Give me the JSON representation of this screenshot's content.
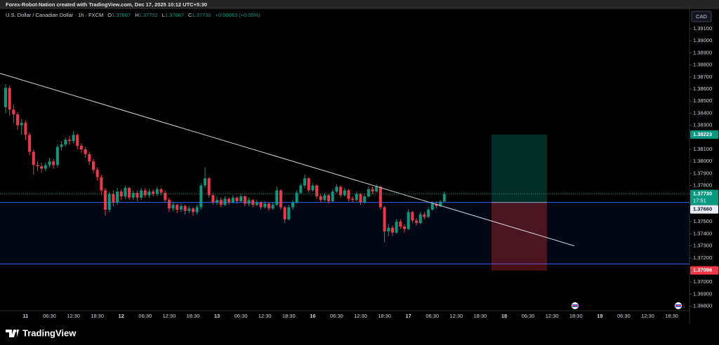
{
  "header": "Forex-Robot-Nation created with TradingView.com, Dec 17, 2025 10:12 UTC+5:30",
  "branding": "TradingView",
  "chart_data": {
    "type": "candlestick",
    "symbol": "U.S. Dollar / Canadian Dollar · 1h · FXCM",
    "legend": [
      {
        "label": "O",
        "value": "1.37667"
      },
      {
        "label": "H",
        "value": "1.37752"
      },
      {
        "label": "L",
        "value": "1.37667"
      },
      {
        "label": "C",
        "value": "1.37730"
      }
    ],
    "change": "+0.00063 (+0.05%)",
    "currency": "CAD",
    "up_color": "#089981",
    "down_color": "#f23645",
    "categories": [
      null,
      null,
      null,
      null,
      null,
      "11",
      null,
      null,
      null,
      null,
      null,
      "06:30",
      null,
      null,
      null,
      null,
      null,
      "12:30",
      null,
      null,
      null,
      null,
      null,
      "18:30",
      null,
      null,
      null,
      null,
      null,
      "12",
      null,
      null,
      null,
      null,
      null,
      "06:30",
      null,
      null,
      null,
      null,
      null,
      "12:30",
      null,
      null,
      null,
      null,
      null,
      "18:30",
      null,
      null,
      null,
      null,
      null,
      "13",
      null,
      null,
      null,
      null,
      null,
      "06:30",
      null,
      null,
      null,
      null,
      null,
      "12:30",
      null,
      null,
      null,
      null,
      null,
      "18:30",
      null,
      null,
      null,
      null,
      null,
      "16",
      null,
      null,
      null,
      null,
      null,
      "06:30",
      null,
      null,
      null,
      null,
      null,
      "12:30",
      null,
      null,
      null,
      null,
      null,
      "18:30",
      null,
      null,
      null,
      null,
      null,
      "17",
      null,
      null,
      null,
      null,
      null,
      "06:30",
      null,
      null,
      null,
      null,
      null,
      "12:30",
      null,
      null,
      null,
      null,
      null,
      "18:30",
      null,
      null,
      null,
      null,
      null,
      "18",
      null,
      null,
      null,
      null,
      null,
      "06:30",
      null,
      null,
      null,
      null,
      null,
      "12:30",
      null,
      null,
      null,
      null,
      null,
      "18:30",
      null,
      null,
      null,
      null,
      null,
      "19",
      null,
      null,
      null,
      null,
      null,
      "06:30",
      null,
      null,
      null,
      null,
      null,
      "12:30",
      null,
      null,
      null,
      null,
      null,
      "18:30",
      null,
      null,
      null,
      null
    ],
    "open": [
      1.3845,
      1.3861,
      1.3843,
      1.3839,
      1.383,
      1.3832,
      1.3822,
      1.3808,
      1.3797,
      1.3796,
      1.3794,
      1.3797,
      1.38,
      1.3797,
      1.3812,
      1.3814,
      1.3818,
      1.3817,
      1.3822,
      1.3813,
      1.381,
      1.3806,
      1.38,
      1.3793,
      1.3787,
      1.3776,
      1.376,
      1.3773,
      1.3766,
      1.3775,
      1.3771,
      1.3778,
      1.377,
      1.3774,
      1.377,
      1.3776,
      1.3772,
      1.3775,
      1.3773,
      1.3777,
      1.3774,
      1.3768,
      1.3761,
      1.3764,
      1.376,
      1.3763,
      1.3759,
      1.3761,
      1.3758,
      1.3762,
      1.378,
      1.3786,
      1.3772,
      1.3766,
      1.3768,
      1.3764,
      1.3769,
      1.3766,
      1.377,
      1.3767,
      1.3771,
      1.3765,
      1.3768,
      1.3764,
      1.3766,
      1.3762,
      1.3765,
      1.3761,
      1.3764,
      1.3776,
      1.3762,
      1.3752,
      1.3762,
      1.3766,
      1.3774,
      1.378,
      1.3786,
      1.3776,
      1.378,
      1.3771,
      1.3768,
      1.3772,
      1.3767,
      1.3775,
      1.3779,
      1.3772,
      1.3776,
      1.3769,
      1.3768,
      1.3773,
      1.3766,
      1.3771,
      1.3777,
      1.3775,
      1.3779,
      1.3762,
      1.3742,
      1.3745,
      1.3741,
      1.375,
      1.3746,
      1.3744,
      1.3758,
      1.3751,
      1.3749,
      1.3756,
      1.3754,
      1.376,
      1.3765,
      1.3763,
      1.37667,
      null,
      null,
      null,
      null,
      null,
      null,
      null,
      null,
      null,
      null,
      null,
      null,
      null,
      null,
      null,
      null,
      null,
      null,
      null,
      null,
      null,
      null,
      null,
      null,
      null,
      null,
      null,
      null,
      null,
      null,
      null,
      null,
      null,
      null,
      null,
      null,
      null,
      null,
      null,
      null,
      null,
      null,
      null,
      null,
      null,
      null,
      null,
      null,
      null,
      null,
      null,
      null,
      null,
      null,
      null,
      null,
      null,
      null,
      null,
      null,
      null
    ],
    "high": [
      1.3864,
      1.3863,
      1.3847,
      1.3841,
      1.3835,
      1.3834,
      1.3824,
      1.381,
      1.38,
      1.3799,
      1.3799,
      1.3803,
      1.3802,
      1.3814,
      1.3817,
      1.382,
      1.3821,
      1.3825,
      1.3823,
      1.3815,
      1.3812,
      1.3808,
      1.3802,
      1.3795,
      1.3789,
      1.3778,
      1.3775,
      1.3776,
      1.3778,
      1.3777,
      1.378,
      1.3779,
      1.3776,
      1.3776,
      1.3778,
      1.3778,
      1.3777,
      1.3777,
      1.3779,
      1.3778,
      1.3776,
      1.377,
      1.3766,
      1.3765,
      1.3765,
      1.3764,
      1.3763,
      1.3762,
      1.3764,
      1.3782,
      1.3795,
      1.3787,
      1.3774,
      1.3771,
      1.377,
      1.3771,
      1.377,
      1.3772,
      1.3771,
      1.3773,
      1.3772,
      1.377,
      1.3769,
      1.3768,
      1.3767,
      1.3767,
      1.3766,
      1.3766,
      1.3779,
      1.3777,
      1.3763,
      1.3764,
      1.3768,
      1.3776,
      1.3782,
      1.3789,
      1.3787,
      1.3782,
      1.3781,
      1.3773,
      1.3774,
      1.3773,
      1.3777,
      1.3781,
      1.378,
      1.3778,
      1.3777,
      1.3771,
      1.3775,
      1.3774,
      1.3773,
      1.3779,
      1.3779,
      1.3781,
      1.378,
      1.3763,
      1.3748,
      1.3747,
      1.3752,
      1.3752,
      1.3748,
      1.376,
      1.3759,
      1.3753,
      1.3758,
      1.3758,
      1.3762,
      1.3767,
      1.3767,
      1.3768,
      1.37752,
      null,
      null,
      null,
      null,
      null,
      null,
      null,
      null,
      null,
      null,
      null,
      null,
      null,
      null,
      null,
      null,
      null,
      null,
      null,
      null,
      null,
      null,
      null,
      null,
      null,
      null,
      null,
      null,
      null,
      null,
      null,
      null,
      null,
      null,
      null,
      null,
      null,
      null,
      null,
      null,
      null,
      null,
      null,
      null,
      null,
      null,
      null,
      null,
      null,
      null,
      null,
      null,
      null,
      null,
      null,
      null,
      null,
      null,
      null,
      null,
      null
    ],
    "low": [
      1.384,
      1.3838,
      1.3832,
      1.3826,
      1.3822,
      1.3818,
      1.3805,
      1.3789,
      1.3792,
      1.3791,
      1.3792,
      1.3795,
      1.3794,
      1.3795,
      1.3809,
      1.3812,
      1.3814,
      1.3815,
      1.381,
      1.3807,
      1.3803,
      1.3797,
      1.379,
      1.3784,
      1.3772,
      1.3755,
      1.3758,
      1.3763,
      1.3764,
      1.3768,
      1.3769,
      1.3768,
      1.3768,
      1.3767,
      1.3768,
      1.377,
      1.377,
      1.3771,
      1.3771,
      1.3772,
      1.3766,
      1.3758,
      1.3759,
      1.3757,
      1.3758,
      1.3756,
      1.3757,
      1.3755,
      1.3756,
      1.376,
      1.3778,
      1.377,
      1.3764,
      1.3764,
      1.3762,
      1.3763,
      1.3764,
      1.3765,
      1.3765,
      1.3766,
      1.3763,
      1.3763,
      1.3762,
      1.3763,
      1.376,
      1.3761,
      1.3759,
      1.376,
      1.3763,
      1.376,
      1.3749,
      1.3751,
      1.376,
      1.3765,
      1.3773,
      1.3778,
      1.3774,
      1.3775,
      1.3769,
      1.3766,
      1.3767,
      1.3765,
      1.3766,
      1.3774,
      1.377,
      1.3771,
      1.3767,
      1.3766,
      1.3767,
      1.3764,
      1.3765,
      1.377,
      1.3773,
      1.3774,
      1.376,
      1.3733,
      1.3738,
      1.3738,
      1.374,
      1.3744,
      1.3741,
      1.3743,
      1.3749,
      1.3747,
      1.3748,
      1.3752,
      1.3753,
      1.3759,
      1.3761,
      1.3762,
      1.37667,
      null,
      null,
      null,
      null,
      null,
      null,
      null,
      null,
      null,
      null,
      null,
      null,
      null,
      null,
      null,
      null,
      null,
      null,
      null,
      null,
      null,
      null,
      null,
      null,
      null,
      null,
      null,
      null,
      null,
      null,
      null,
      null,
      null,
      null,
      null,
      null,
      null,
      null,
      null,
      null,
      null,
      null,
      null,
      null,
      null,
      null,
      null,
      null,
      null,
      null,
      null,
      null,
      null,
      null,
      null,
      null,
      null,
      null,
      null,
      null,
      null
    ],
    "close": [
      1.3861,
      1.3843,
      1.3839,
      1.383,
      1.3832,
      1.3822,
      1.3808,
      1.3797,
      1.3796,
      1.3794,
      1.3797,
      1.38,
      1.3797,
      1.3812,
      1.3814,
      1.3818,
      1.3817,
      1.3822,
      1.3813,
      1.381,
      1.3806,
      1.38,
      1.3793,
      1.3787,
      1.3776,
      1.376,
      1.3773,
      1.3766,
      1.3775,
      1.3771,
      1.3778,
      1.377,
      1.3774,
      1.377,
      1.3776,
      1.3772,
      1.3775,
      1.3773,
      1.3777,
      1.3774,
      1.3768,
      1.3761,
      1.3764,
      1.376,
      1.3763,
      1.3759,
      1.3761,
      1.3758,
      1.3762,
      1.378,
      1.3786,
      1.3772,
      1.3766,
      1.3768,
      1.3764,
      1.3769,
      1.3766,
      1.377,
      1.3767,
      1.3771,
      1.3765,
      1.3768,
      1.3764,
      1.3766,
      1.3762,
      1.3765,
      1.3761,
      1.3764,
      1.3776,
      1.3762,
      1.3752,
      1.3762,
      1.3766,
      1.3774,
      1.378,
      1.3786,
      1.3776,
      1.378,
      1.3771,
      1.3768,
      1.3772,
      1.3767,
      1.3775,
      1.3779,
      1.3772,
      1.3776,
      1.3769,
      1.3768,
      1.3773,
      1.3766,
      1.3771,
      1.3777,
      1.3775,
      1.3779,
      1.3762,
      1.3742,
      1.3745,
      1.3741,
      1.375,
      1.3746,
      1.3744,
      1.3758,
      1.3751,
      1.3749,
      1.3756,
      1.3754,
      1.376,
      1.3765,
      1.3763,
      1.37667,
      1.3773,
      null,
      null,
      null,
      null,
      null,
      null,
      null,
      null,
      null,
      null,
      null,
      null,
      null,
      null,
      null,
      null,
      null,
      null,
      null,
      null,
      null,
      null,
      null,
      null,
      null,
      null,
      null,
      null,
      null,
      null,
      null,
      null,
      null,
      null,
      null,
      null,
      null,
      null,
      null,
      null,
      null,
      null,
      null,
      null,
      null,
      null,
      null,
      null,
      null,
      null,
      null,
      null,
      null,
      null,
      null,
      null,
      null,
      null,
      null,
      null,
      null
    ],
    "ylim": [
      1.36693,
      1.39164
    ],
    "yticks": [
      {
        "value": 1.391,
        "label": "1.39100"
      },
      {
        "value": 1.39,
        "label": "1.39000"
      },
      {
        "value": 1.389,
        "label": "1.38900"
      },
      {
        "value": 1.388,
        "label": "1.38800"
      },
      {
        "value": 1.387,
        "label": "1.38700"
      },
      {
        "value": 1.386,
        "label": "1.38600"
      },
      {
        "value": 1.385,
        "label": "1.38500"
      },
      {
        "value": 1.384,
        "label": "1.38400"
      },
      {
        "value": 1.383,
        "label": "1.38300"
      },
      {
        "value": 1.381,
        "label": "1.38100"
      },
      {
        "value": 1.38,
        "label": "1.38000"
      },
      {
        "value": 1.379,
        "label": "1.37900"
      },
      {
        "value": 1.378,
        "label": "1.37800"
      },
      {
        "value": 1.375,
        "label": "1.37500"
      },
      {
        "value": 1.374,
        "label": "1.37400"
      },
      {
        "value": 1.373,
        "label": "1.37300"
      },
      {
        "value": 1.372,
        "label": "1.37200"
      },
      {
        "value": 1.37,
        "label": "1.37000"
      },
      {
        "value": 1.369,
        "label": "1.36900"
      },
      {
        "value": 1.368,
        "label": "1.36800"
      }
    ],
    "price_labels": [
      {
        "value": 1.38223,
        "label": "1.38223",
        "color": "#089981"
      },
      {
        "value": 1.3773,
        "label": "1.37730",
        "color": "#089981",
        "countdown": "17:51"
      },
      {
        "value": 1.3766,
        "label": "1.37660",
        "color": "#e8ecf5"
      },
      {
        "value": 1.37096,
        "label": "1.37096",
        "color": "#f23645"
      }
    ],
    "zone": {
      "top": 1.3766,
      "bottom": 1.3715,
      "color": "#2962ff"
    },
    "position": {
      "target": 1.38223,
      "entry": 1.3766,
      "stop": 1.37096
    },
    "trendline": {
      "start": 1.3873,
      "end": 1.373
    }
  }
}
